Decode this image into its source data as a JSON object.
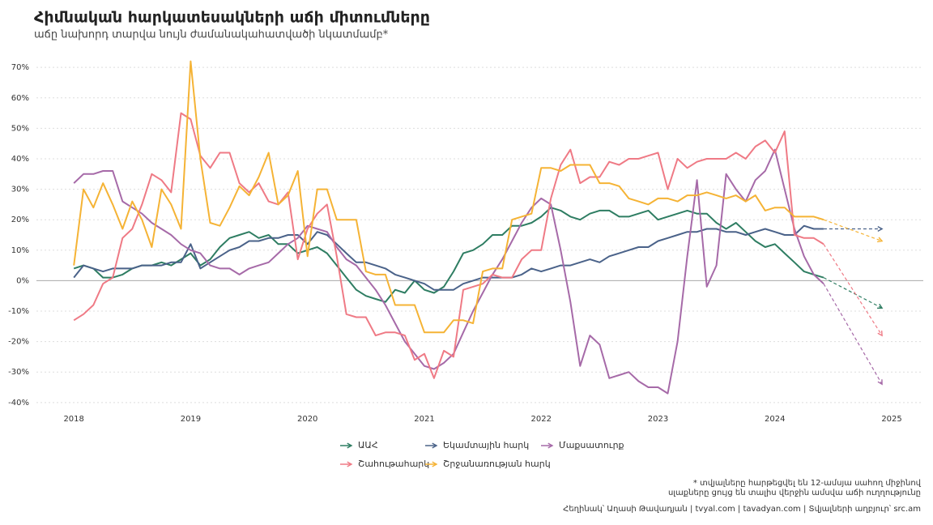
{
  "chart_data": {
    "type": "line",
    "title": "Հիմնական հարկատեսակների աճի միտումները",
    "subtitle": "աճը նախորդ տարվա նույն ժամանակահատվածի նկատմամբ*",
    "x": [
      2018,
      2018.083,
      2018.167,
      2018.25,
      2018.333,
      2018.417,
      2018.5,
      2018.583,
      2018.667,
      2018.75,
      2018.833,
      2018.917,
      2019,
      2019.083,
      2019.167,
      2019.25,
      2019.333,
      2019.417,
      2019.5,
      2019.583,
      2019.667,
      2019.75,
      2019.833,
      2019.917,
      2020,
      2020.083,
      2020.167,
      2020.25,
      2020.333,
      2020.417,
      2020.5,
      2020.583,
      2020.667,
      2020.75,
      2020.833,
      2020.917,
      2021,
      2021.083,
      2021.167,
      2021.25,
      2021.333,
      2021.417,
      2021.5,
      2021.583,
      2021.667,
      2021.75,
      2021.833,
      2021.917,
      2022,
      2022.083,
      2022.167,
      2022.25,
      2022.333,
      2022.417,
      2022.5,
      2022.583,
      2022.667,
      2022.75,
      2022.833,
      2022.917,
      2023,
      2023.083,
      2023.167,
      2023.25,
      2023.333,
      2023.417,
      2023.5,
      2023.583,
      2023.667,
      2023.75,
      2023.833,
      2023.917,
      2024,
      2024.083,
      2024.167,
      2024.25,
      2024.333,
      2024.417
    ],
    "forecast_x": 2024.917,
    "series": [
      {
        "name": "ԱԱՀ",
        "color": "#2e7d62",
        "forecast": -9,
        "values": [
          4,
          5,
          4,
          1,
          1,
          2,
          4,
          5,
          5,
          6,
          5,
          7,
          9,
          5,
          7,
          11,
          14,
          15,
          16,
          14,
          15,
          12,
          12,
          9,
          10,
          11,
          9,
          5,
          1,
          -3,
          -5,
          -6,
          -7,
          -3,
          -4,
          0,
          -3,
          -4,
          -2,
          3,
          9,
          10,
          12,
          15,
          15,
          18,
          18,
          19,
          21,
          24,
          23,
          21,
          20,
          22,
          23,
          23,
          21,
          21,
          22,
          23,
          20,
          21,
          22,
          23,
          22,
          22,
          19,
          17,
          19,
          16,
          13,
          11,
          12,
          9,
          6,
          3,
          2,
          1
        ]
      },
      {
        "name": "Եկամտային հարկ",
        "color": "#4a6289",
        "forecast": 17,
        "values": [
          1,
          5,
          4,
          3,
          4,
          4,
          4,
          5,
          5,
          5,
          6,
          6,
          12,
          4,
          6,
          8,
          10,
          11,
          13,
          13,
          14,
          14,
          15,
          15,
          12,
          16,
          15,
          12,
          9,
          6,
          6,
          5,
          4,
          2,
          1,
          0,
          -1,
          -3,
          -3,
          -3,
          -1,
          0,
          1,
          1,
          1,
          1,
          2,
          4,
          3,
          4,
          5,
          5,
          6,
          7,
          6,
          8,
          9,
          10,
          11,
          11,
          13,
          14,
          15,
          16,
          16,
          17,
          17,
          16,
          16,
          15,
          16,
          17,
          16,
          15,
          15,
          18,
          17,
          17
        ]
      },
      {
        "name": "Մաքսատուրք",
        "color": "#a66aa8",
        "forecast": -34,
        "values": [
          32,
          35,
          35,
          36,
          36,
          26,
          24,
          22,
          19,
          17,
          15,
          12,
          10,
          9,
          5,
          4,
          4,
          2,
          4,
          5,
          6,
          9,
          12,
          14,
          18,
          17,
          16,
          11,
          7,
          5,
          1,
          -3,
          -8,
          -14,
          -20,
          -24,
          -28,
          -29,
          -27,
          -24,
          -17,
          -10,
          -4,
          2,
          7,
          13,
          19,
          24,
          27,
          25,
          10,
          -7,
          -28,
          -18,
          -21,
          -32,
          -31,
          -30,
          -33,
          -35,
          -35,
          -37,
          -20,
          8,
          33,
          -2,
          5,
          35,
          30,
          26,
          33,
          36,
          43,
          30,
          17,
          8,
          2,
          -1
        ]
      },
      {
        "name": "Շահութահարկ",
        "color": "#ef7a85",
        "forecast": -18,
        "values": [
          -13,
          -11,
          -8,
          -1,
          1,
          14,
          17,
          25,
          35,
          33,
          29,
          55,
          53,
          41,
          37,
          42,
          42,
          32,
          29,
          32,
          26,
          25,
          29,
          7,
          17,
          22,
          25,
          8,
          -11,
          -12,
          -12,
          -18,
          -17,
          -17,
          -18,
          -26,
          -24,
          -32,
          -23,
          -25,
          -3,
          -2,
          -1,
          2,
          1,
          1,
          7,
          10,
          10,
          27,
          38,
          43,
          32,
          34,
          34,
          39,
          38,
          40,
          40,
          41,
          42,
          30,
          40,
          37,
          39,
          40,
          40,
          40,
          42,
          40,
          44,
          46,
          42,
          49,
          15,
          14,
          14,
          12
        ]
      },
      {
        "name": "Շրջանառության հարկ",
        "color": "#f5b335",
        "forecast": 13,
        "values": [
          5,
          30,
          24,
          32,
          25,
          17,
          26,
          20,
          11,
          30,
          25,
          17,
          72,
          40,
          19,
          18,
          24,
          31,
          28,
          34,
          42,
          25,
          28,
          36,
          8,
          30,
          30,
          20,
          20,
          20,
          3,
          2,
          2,
          -8,
          -8,
          -8,
          -17,
          -17,
          -17,
          -13,
          -13,
          -14,
          3,
          4,
          4,
          20,
          21,
          22,
          37,
          37,
          36,
          38,
          38,
          38,
          32,
          32,
          31,
          27,
          26,
          25,
          27,
          27,
          26,
          28,
          28,
          29,
          28,
          27,
          28,
          26,
          28,
          23,
          24,
          24,
          21,
          21,
          21,
          20
        ]
      }
    ],
    "xlim": [
      2017.68,
      2025.27
    ],
    "xticks": [
      2018,
      2019,
      2020,
      2021,
      2022,
      2023,
      2024,
      2025
    ],
    "ylim": [
      -43.5,
      73.5
    ],
    "yticks": [
      {
        "value": -40,
        "label": "-40%"
      },
      {
        "value": -30,
        "label": "-30%"
      },
      {
        "value": -20,
        "label": "-20%"
      },
      {
        "value": -10,
        "label": "-10%"
      },
      {
        "value": 0,
        "label": "0%"
      },
      {
        "value": 10,
        "label": "10%"
      },
      {
        "value": 20,
        "label": "20%"
      },
      {
        "value": 30,
        "label": "30%"
      },
      {
        "value": 40,
        "label": "40%"
      },
      {
        "value": 50,
        "label": "50%"
      },
      {
        "value": 60,
        "label": "60%"
      },
      {
        "value": 70,
        "label": "70%"
      }
    ],
    "grid": true,
    "notes": [
      "* տվյալները հարթեցվել են 12-ամսյա սահող միջինով",
      "սլաքները ցույց են տալիս վերջին ամսվա աճի ուղղությունը"
    ],
    "credits": [
      "Հեղինակ՝ Աղասի Թավադյան",
      "tvyal.com",
      "tavadyan.com",
      "Տվյալների աղբյուր՝ src.am"
    ]
  }
}
